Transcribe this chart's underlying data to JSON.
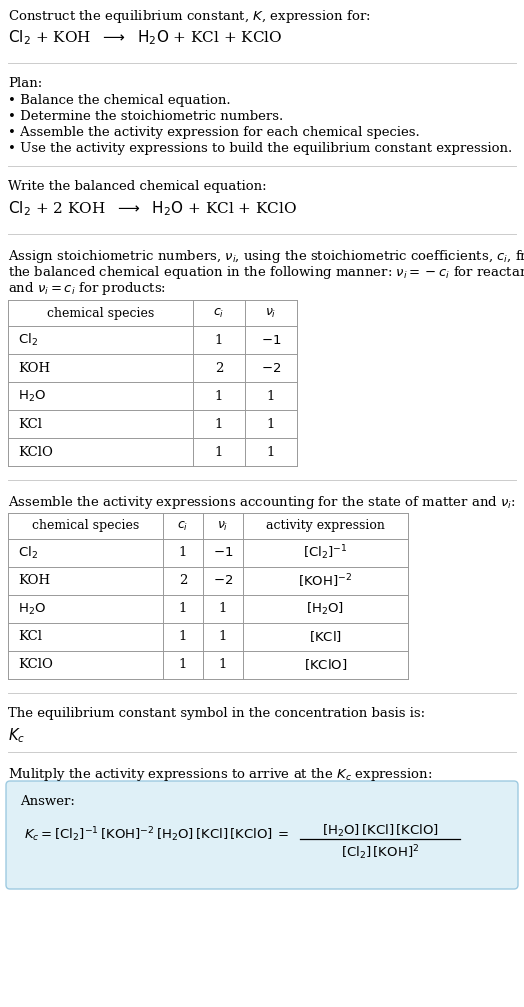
{
  "title_line1": "Construct the equilibrium constant, $K$, expression for:",
  "title_line2": "$\\mathrm{Cl_2}$ + KOH  $\\longrightarrow$  $\\mathrm{H_2O}$ + KCl + KClO",
  "plan_header": "Plan:",
  "plan_bullets": [
    "• Balance the chemical equation.",
    "• Determine the stoichiometric numbers.",
    "• Assemble the activity expression for each chemical species.",
    "• Use the activity expressions to build the equilibrium constant expression."
  ],
  "balanced_header": "Write the balanced chemical equation:",
  "balanced_eq": "$\\mathrm{Cl_2}$ + 2 KOH  $\\longrightarrow$  $\\mathrm{H_2O}$ + KCl + KClO",
  "stoich_lines": [
    "Assign stoichiometric numbers, $\\nu_i$, using the stoichiometric coefficients, $c_i$, from",
    "the balanced chemical equation in the following manner: $\\nu_i = -c_i$ for reactants",
    "and $\\nu_i = c_i$ for products:"
  ],
  "table1_headers": [
    "chemical species",
    "$c_i$",
    "$\\nu_i$"
  ],
  "table1_data": [
    [
      "$\\mathrm{Cl_2}$",
      "1",
      "$-1$"
    ],
    [
      "KOH",
      "2",
      "$-2$"
    ],
    [
      "$\\mathrm{H_2O}$",
      "1",
      "1"
    ],
    [
      "KCl",
      "1",
      "1"
    ],
    [
      "KClO",
      "1",
      "1"
    ]
  ],
  "activity_header": "Assemble the activity expressions accounting for the state of matter and $\\nu_i$:",
  "table2_headers": [
    "chemical species",
    "$c_i$",
    "$\\nu_i$",
    "activity expression"
  ],
  "table2_data": [
    [
      "$\\mathrm{Cl_2}$",
      "1",
      "$-1$",
      "$[\\mathrm{Cl_2}]^{-1}$"
    ],
    [
      "KOH",
      "2",
      "$-2$",
      "$[\\mathrm{KOH}]^{-2}$"
    ],
    [
      "$\\mathrm{H_2O}$",
      "1",
      "1",
      "$[\\mathrm{H_2O}]$"
    ],
    [
      "KCl",
      "1",
      "1",
      "$[\\mathrm{KCl}]$"
    ],
    [
      "KClO",
      "1",
      "1",
      "$[\\mathrm{KClO}]$"
    ]
  ],
  "kc_symbol_text": "The equilibrium constant symbol in the concentration basis is:",
  "kc_symbol": "$K_c$",
  "multiply_text": "Mulitply the activity expressions to arrive at the $K_c$ expression:",
  "answer_label": "Answer:",
  "answer_line1": "$K_c = [\\mathrm{Cl_2}]^{-1}\\,[\\mathrm{KOH}]^{-2}\\,[\\mathrm{H_2O}]\\,[\\mathrm{KCl}]\\,[\\mathrm{KClO}]\\; =\\; \\dfrac{[\\mathrm{H_2O}]\\,[\\mathrm{KCl}]\\,[\\mathrm{KClO}]}{[\\mathrm{Cl_2}]\\,[\\mathrm{KOH}]^2}$",
  "bg_color": "#ffffff",
  "text_color": "#000000",
  "table_border_color": "#999999",
  "answer_box_fill": "#dff0f7",
  "answer_box_border": "#9ecae1",
  "separator_color": "#cccccc",
  "font_size": 9.5
}
